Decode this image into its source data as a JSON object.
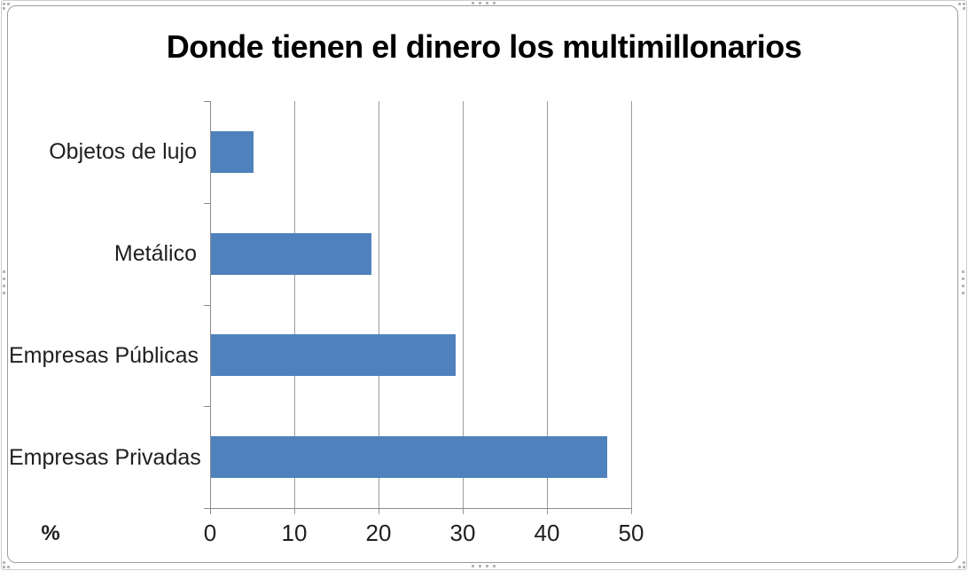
{
  "window": {
    "selection_frame": true
  },
  "chart_data": {
    "type": "bar",
    "orientation": "horizontal",
    "title": "Donde tienen el dinero los multimillonarios",
    "categories": [
      "Objetos de lujo",
      "Metálico",
      "Empresas Públicas",
      "Empresas Privadas"
    ],
    "values": [
      5,
      19,
      29,
      47
    ],
    "xlabel": "%",
    "ylabel": "",
    "xlim": [
      0,
      50
    ],
    "xticks": [
      0,
      10,
      20,
      30,
      40,
      50
    ],
    "grid": true,
    "legend": false,
    "bar_color": "#4F81BD",
    "gridline_color": "#9b9b9b",
    "axis_color": "#8a8a8a",
    "text_color": "#1f1f1f",
    "title_color": "#000000"
  }
}
